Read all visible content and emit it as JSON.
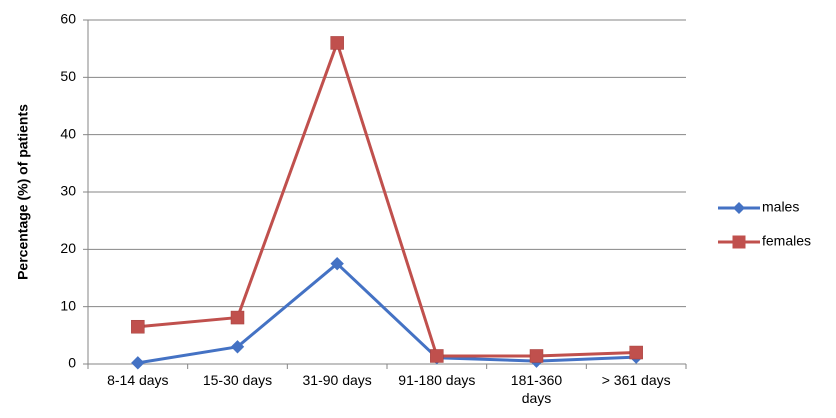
{
  "chart_data": {
    "type": "line",
    "title": "",
    "xlabel": "",
    "ylabel": "Percentage (%) of patients",
    "categories": [
      "8-14 days",
      "15-30 days",
      "31-90 days",
      "91-180 days",
      "181-360 days",
      "> 361 days"
    ],
    "y_ticks": [
      "0",
      "10",
      "20",
      "30",
      "40",
      "50",
      "60"
    ],
    "ylim": [
      0,
      60
    ],
    "grid": true,
    "legend_position": "right",
    "series": [
      {
        "name": "males",
        "values": [
          0.2,
          3.0,
          17.5,
          1.1,
          0.5,
          1.2
        ],
        "color": "#4472C4",
        "marker": "diamond"
      },
      {
        "name": "females",
        "values": [
          6.5,
          8.1,
          56.0,
          1.4,
          1.4,
          2.0
        ],
        "color": "#C0504D",
        "marker": "square"
      }
    ]
  }
}
